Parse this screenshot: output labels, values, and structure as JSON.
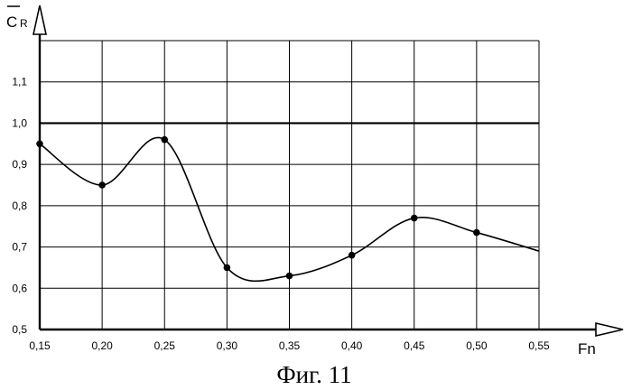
{
  "caption": "Фиг. 11",
  "chart_data": {
    "type": "line",
    "xlabel": "Fn",
    "ylabel": "C",
    "ylabel_subscript": "R",
    "xlim": [
      0.15,
      0.55
    ],
    "ylim": [
      0.5,
      1.2
    ],
    "x_ticks": [
      "0,15",
      "0,20",
      "0,25",
      "0,30",
      "0,35",
      "0,40",
      "0,45",
      "0,50",
      "0,55"
    ],
    "y_ticks": [
      "0,5",
      "0,6",
      "0,7",
      "0,8",
      "0,9",
      "1,0",
      "1,1"
    ],
    "reference_line": 1.0,
    "grid": true,
    "series": [
      {
        "x": [
          0.15,
          0.2,
          0.25,
          0.3,
          0.35,
          0.4,
          0.45,
          0.5
        ],
        "y": [
          0.95,
          0.85,
          0.96,
          0.65,
          0.63,
          0.68,
          0.77,
          0.735
        ],
        "curve_end": {
          "x": 0.55,
          "y": 0.69
        }
      }
    ]
  }
}
